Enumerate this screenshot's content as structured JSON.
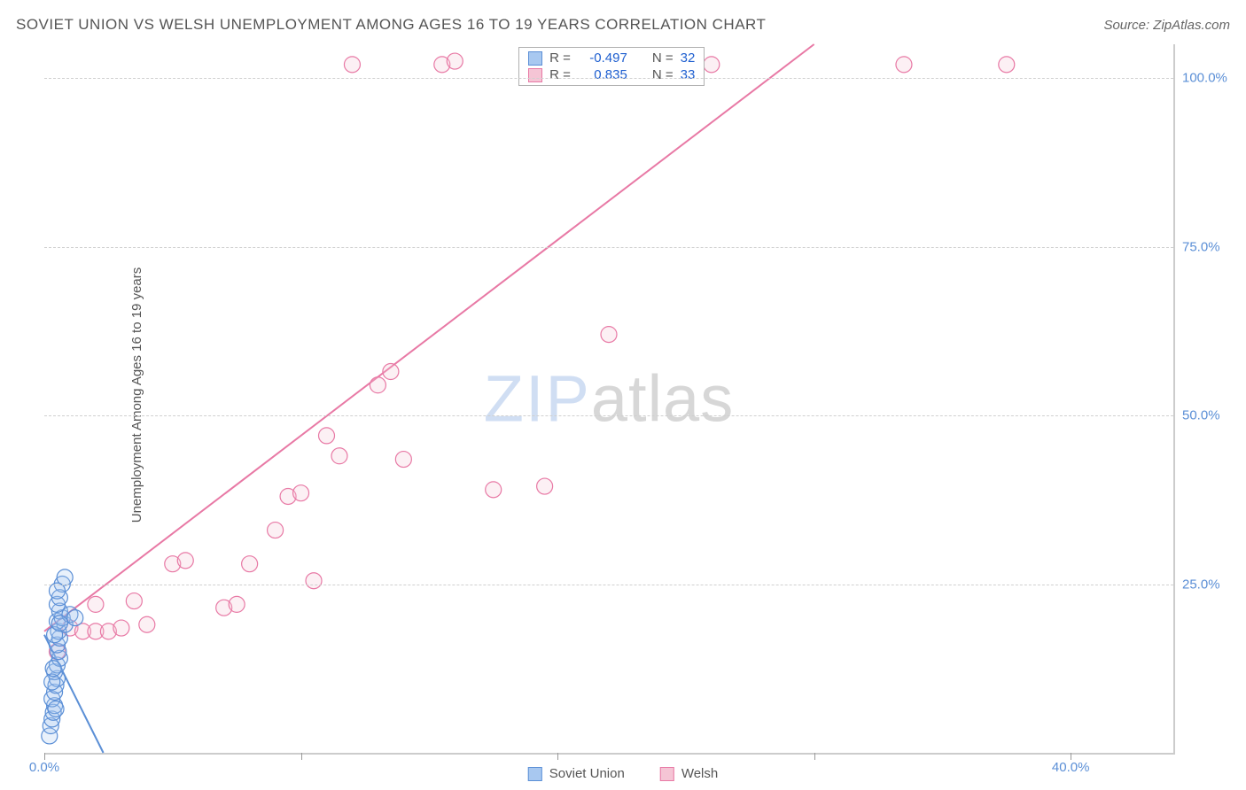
{
  "header": {
    "title": "SOVIET UNION VS WELSH UNEMPLOYMENT AMONG AGES 16 TO 19 YEARS CORRELATION CHART",
    "source": "Source: ZipAtlas.com"
  },
  "chart": {
    "type": "scatter",
    "y_axis_label": "Unemployment Among Ages 16 to 19 years",
    "watermark_parts": {
      "zip": "ZIP",
      "atlas": "atlas"
    },
    "background_color": "#ffffff",
    "grid_color": "#d0d0d0",
    "border_color": "#cccccc",
    "xlim": [
      0,
      44
    ],
    "ylim": [
      0,
      105
    ],
    "x_ticks": [
      0,
      10,
      20,
      30,
      40
    ],
    "x_tick_labels": {
      "0": "0.0%",
      "40": "40.0%"
    },
    "x_tick_label_color": "#5b8fd6",
    "y_gridlines": [
      25,
      50,
      75,
      100
    ],
    "y_tick_labels": {
      "25": "25.0%",
      "50": "50.0%",
      "75": "75.0%",
      "100": "100.0%"
    },
    "y_tick_label_color": "#5b8fd6",
    "marker_radius": 9,
    "marker_stroke_width": 1.2,
    "marker_fill_opacity": 0.25,
    "trend_line_width": 2,
    "series": {
      "soviet": {
        "label": "Soviet Union",
        "color_fill": "#a8c8f0",
        "color_stroke": "#5b8fd6",
        "R": "-0.497",
        "N": "32",
        "trend": {
          "x1": 0,
          "y1": 17.5,
          "x2": 2.3,
          "y2": 0
        },
        "points": [
          [
            0.2,
            2.5
          ],
          [
            0.25,
            4.0
          ],
          [
            0.3,
            5.0
          ],
          [
            0.35,
            6.0
          ],
          [
            0.4,
            7.0
          ],
          [
            0.3,
            8.0
          ],
          [
            0.4,
            9.0
          ],
          [
            0.45,
            10.0
          ],
          [
            0.5,
            11.0
          ],
          [
            0.4,
            12.0
          ],
          [
            0.5,
            13.0
          ],
          [
            0.6,
            14.0
          ],
          [
            0.55,
            15.0
          ],
          [
            0.5,
            16.0
          ],
          [
            0.6,
            17.0
          ],
          [
            0.55,
            18.0
          ],
          [
            0.8,
            19.0
          ],
          [
            0.5,
            19.5
          ],
          [
            0.7,
            20.0
          ],
          [
            0.6,
            21.0
          ],
          [
            0.5,
            22.0
          ],
          [
            0.6,
            23.0
          ],
          [
            0.7,
            25.0
          ],
          [
            0.8,
            26.0
          ],
          [
            0.5,
            24.0
          ],
          [
            0.4,
            17.5
          ],
          [
            0.3,
            10.5
          ],
          [
            1.0,
            20.5
          ],
          [
            1.2,
            20.0
          ],
          [
            0.45,
            6.5
          ],
          [
            0.35,
            12.5
          ],
          [
            0.6,
            19.2
          ]
        ]
      },
      "welsh": {
        "label": "Welsh",
        "color_fill": "#f5c5d5",
        "color_stroke": "#e879a5",
        "R": "0.835",
        "N": "33",
        "trend": {
          "x1": 0,
          "y1": 18,
          "x2": 30,
          "y2": 105
        },
        "points": [
          [
            0.5,
            15.0
          ],
          [
            1.0,
            18.5
          ],
          [
            1.5,
            18.0
          ],
          [
            2.0,
            18.0
          ],
          [
            2.5,
            18.0
          ],
          [
            3.0,
            18.5
          ],
          [
            4.0,
            19.0
          ],
          [
            2.0,
            22.0
          ],
          [
            3.5,
            22.5
          ],
          [
            5.0,
            28.0
          ],
          [
            5.5,
            28.5
          ],
          [
            7.0,
            21.5
          ],
          [
            7.5,
            22.0
          ],
          [
            8.0,
            28.0
          ],
          [
            9.0,
            33.0
          ],
          [
            9.5,
            38.0
          ],
          [
            10.0,
            38.5
          ],
          [
            10.5,
            25.5
          ],
          [
            11.0,
            47.0
          ],
          [
            11.5,
            44.0
          ],
          [
            12.0,
            102.0
          ],
          [
            13.0,
            54.5
          ],
          [
            13.5,
            56.5
          ],
          [
            14.0,
            43.5
          ],
          [
            15.5,
            102.0
          ],
          [
            16.0,
            102.5
          ],
          [
            17.5,
            39.0
          ],
          [
            19.5,
            39.5
          ],
          [
            22.0,
            62.0
          ],
          [
            26.0,
            102.0
          ],
          [
            33.5,
            102.0
          ],
          [
            37.5,
            102.0
          ],
          [
            20.5,
            102.5
          ]
        ]
      }
    },
    "stats_box": {
      "r_label": "R =",
      "n_label": "N =",
      "value_color": "#2060d0"
    },
    "bottom_legend": {
      "items": [
        "soviet",
        "welsh"
      ]
    }
  }
}
